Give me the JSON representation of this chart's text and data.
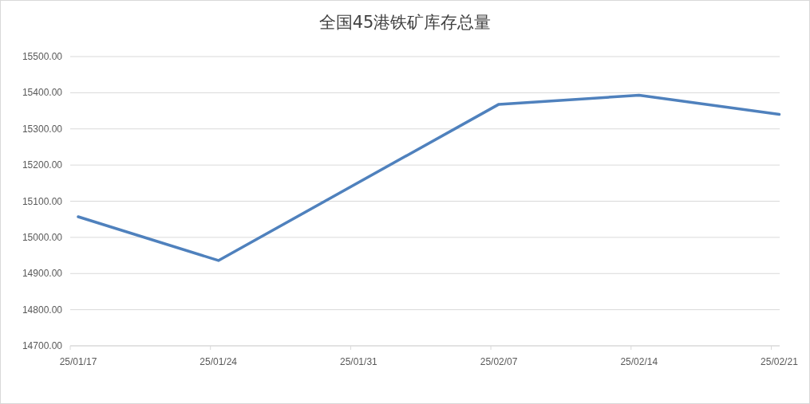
{
  "chart_data": {
    "type": "line",
    "title": "全国45港铁矿库存总量",
    "categories": [
      "25/01/17",
      "25/01/24",
      "25/01/31",
      "25/02/07",
      "25/02/14",
      "25/02/21"
    ],
    "values": [
      15057,
      14936,
      null,
      15368,
      15393,
      15340
    ],
    "color": "#4f81bd",
    "ylim": [
      14700,
      15500
    ],
    "yticks": [
      {
        "value": 14700,
        "label": "14700.00"
      },
      {
        "value": 14800,
        "label": "14800.00"
      },
      {
        "value": 14900,
        "label": "14900.00"
      },
      {
        "value": 15000,
        "label": "15000.00"
      },
      {
        "value": 15100,
        "label": "15100.00"
      },
      {
        "value": 15200,
        "label": "15200.00"
      },
      {
        "value": 15300,
        "label": "15300.00"
      },
      {
        "value": 15400,
        "label": "15400.00"
      },
      {
        "value": 15500,
        "label": "15500.00"
      }
    ],
    "grid": "y",
    "legend": false,
    "marker": "none",
    "line_style": "solid"
  }
}
